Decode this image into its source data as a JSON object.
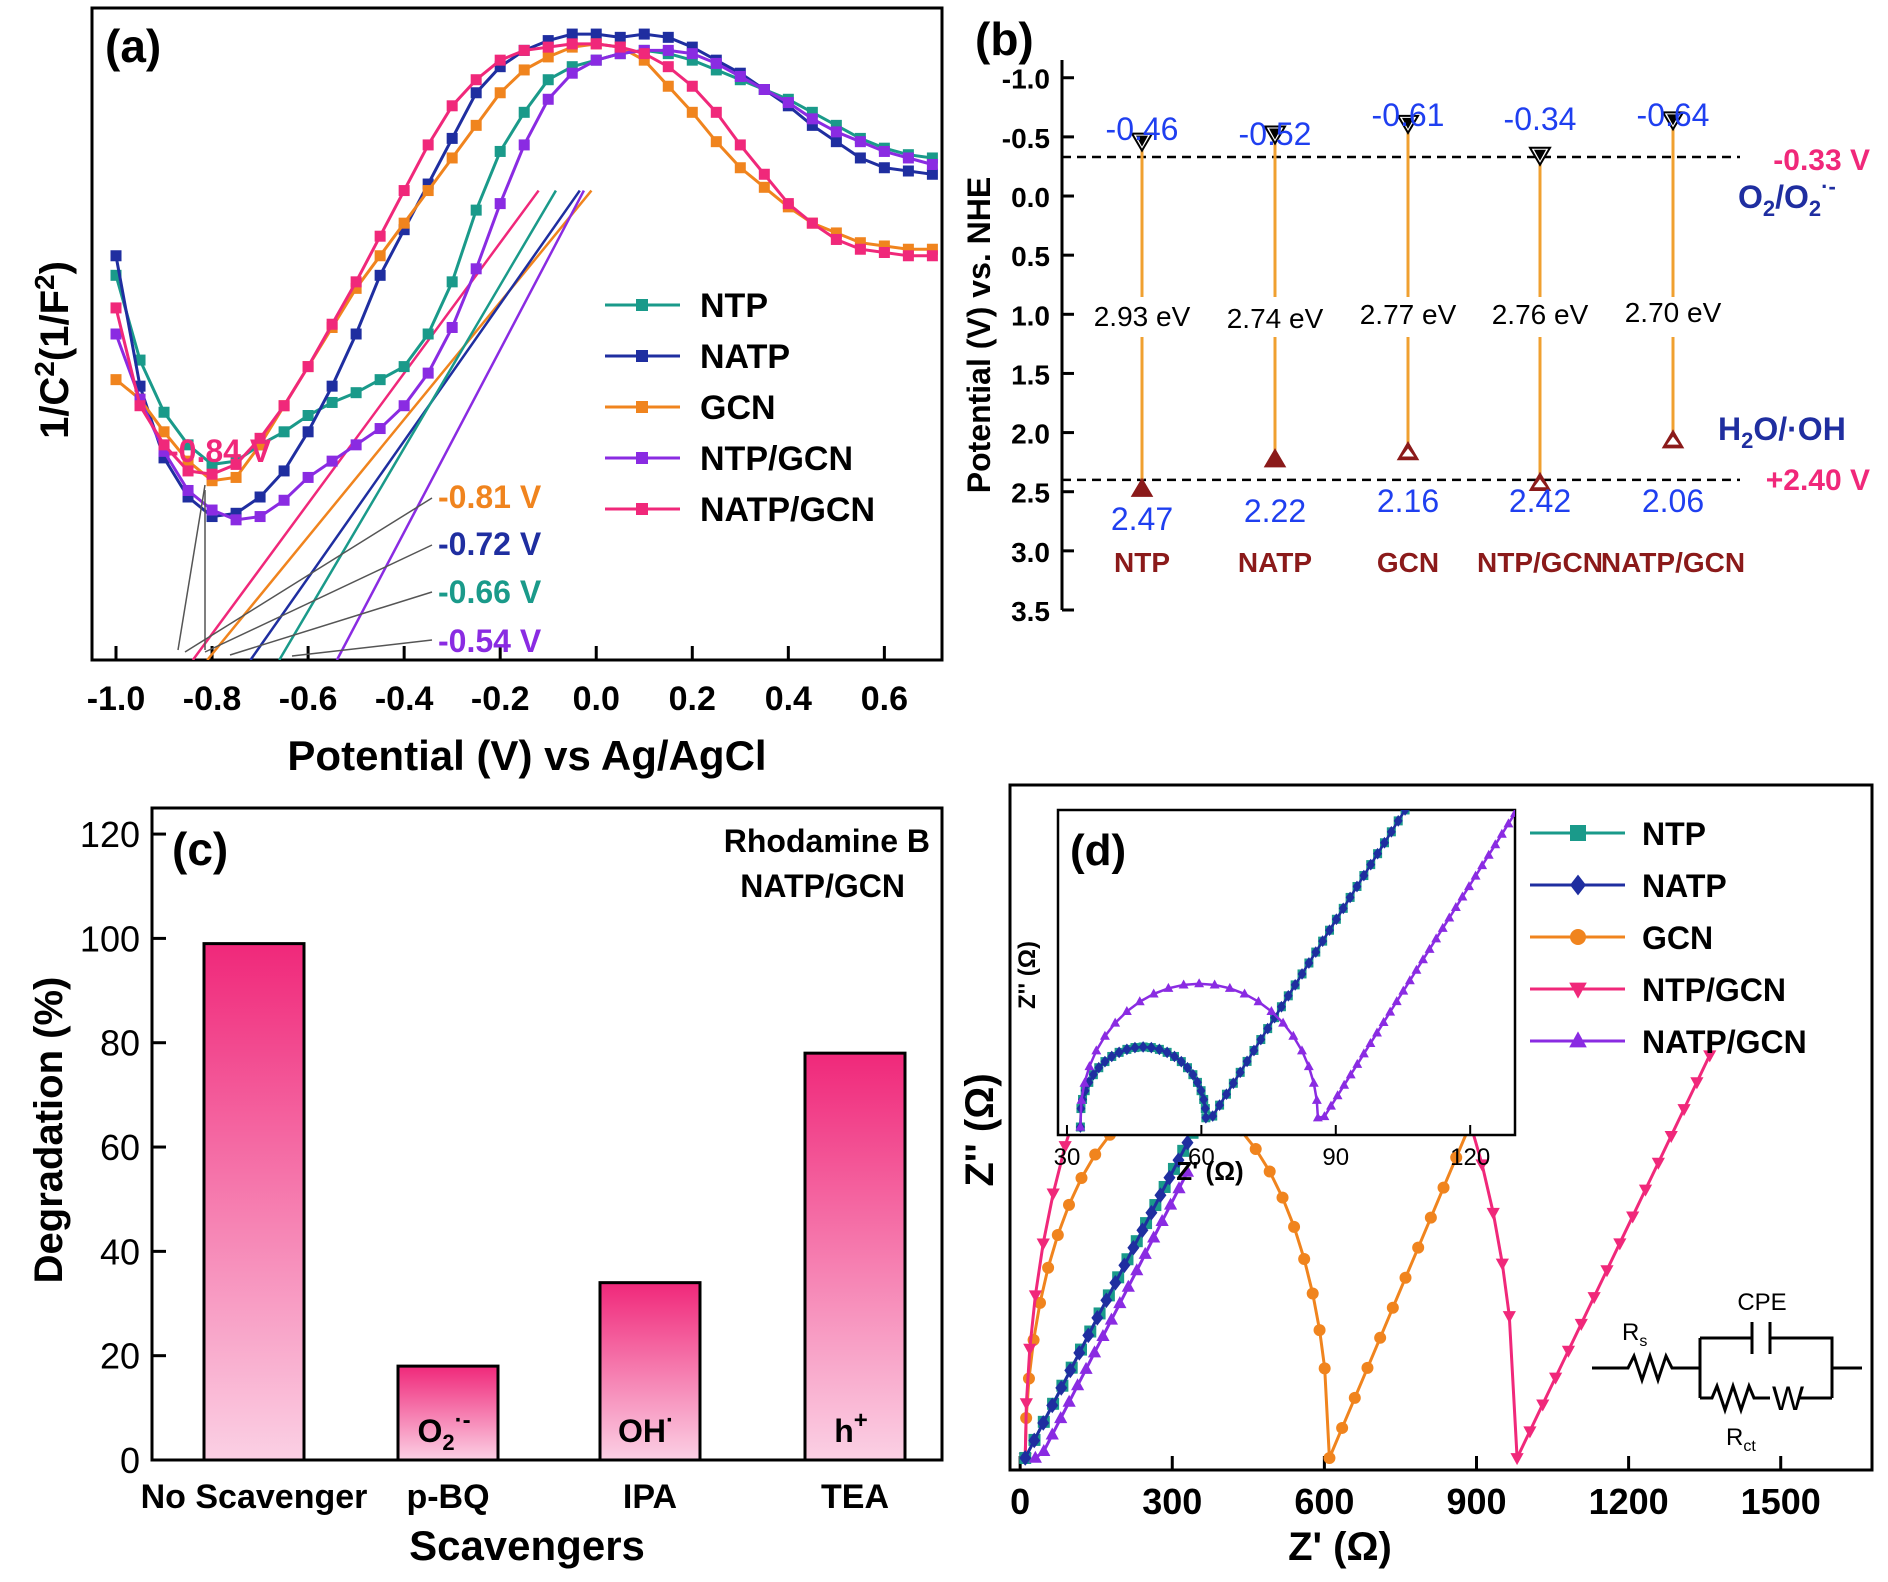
{
  "figure": {
    "panels": [
      {
        "id": "a",
        "label": "(a)",
        "chart_data": {
          "type": "line",
          "title": "",
          "xlabel": "Potential (V) vs Ag/AgCl",
          "ylabel_main": "1/C",
          "ylabel_sup": "2",
          "ylabel_rest": "(1/F",
          "ylabel_sup2": "2",
          "ylabel_end": ")",
          "xlim": [
            -1.05,
            0.72
          ],
          "ylim": [
            0,
            10
          ],
          "xticks": [
            -1.0,
            -0.8,
            -0.6,
            -0.4,
            -0.2,
            0.0,
            0.2,
            0.4,
            0.6
          ],
          "xtick_labels": [
            "-1.0",
            "-0.8",
            "-0.6",
            "-0.4",
            "-0.2",
            "0.0",
            "0.2",
            "0.4",
            "0.6"
          ],
          "legend_position": "right",
          "series": [
            {
              "name": "NTP",
              "color": "#1a9a8a",
              "x": [
                -1.0,
                -0.95,
                -0.9,
                -0.85,
                -0.8,
                -0.75,
                -0.7,
                -0.65,
                -0.6,
                -0.55,
                -0.5,
                -0.45,
                -0.4,
                -0.35,
                -0.3,
                -0.25,
                -0.2,
                -0.15,
                -0.1,
                -0.05,
                0.0,
                0.05,
                0.1,
                0.15,
                0.2,
                0.25,
                0.3,
                0.35,
                0.4,
                0.45,
                0.5,
                0.55,
                0.6,
                0.65,
                0.7
              ],
              "y": [
                5.9,
                4.6,
                3.8,
                3.3,
                3.0,
                3.05,
                3.3,
                3.5,
                3.75,
                3.95,
                4.1,
                4.3,
                4.5,
                5.0,
                5.8,
                6.9,
                7.8,
                8.4,
                8.9,
                9.1,
                9.2,
                9.3,
                9.35,
                9.3,
                9.2,
                9.05,
                8.9,
                8.75,
                8.6,
                8.4,
                8.2,
                8.0,
                7.85,
                7.75,
                7.7
              ]
            },
            {
              "name": "NATP",
              "color": "#1f2ea0",
              "x": [
                -1.0,
                -0.95,
                -0.9,
                -0.85,
                -0.8,
                -0.75,
                -0.7,
                -0.65,
                -0.6,
                -0.55,
                -0.5,
                -0.45,
                -0.4,
                -0.35,
                -0.3,
                -0.25,
                -0.2,
                -0.15,
                -0.1,
                -0.05,
                0.0,
                0.05,
                0.1,
                0.15,
                0.2,
                0.25,
                0.3,
                0.35,
                0.4,
                0.45,
                0.5,
                0.55,
                0.6,
                0.65,
                0.7
              ],
              "y": [
                6.2,
                4.2,
                3.1,
                2.5,
                2.2,
                2.25,
                2.5,
                2.9,
                3.5,
                4.2,
                5.0,
                5.9,
                6.6,
                7.3,
                8.0,
                8.7,
                9.1,
                9.35,
                9.5,
                9.6,
                9.6,
                9.55,
                9.6,
                9.55,
                9.4,
                9.2,
                9.0,
                8.75,
                8.5,
                8.2,
                7.95,
                7.7,
                7.55,
                7.5,
                7.45
              ]
            },
            {
              "name": "GCN",
              "color": "#f0841e",
              "x": [
                -1.0,
                -0.95,
                -0.9,
                -0.85,
                -0.8,
                -0.75,
                -0.7,
                -0.65,
                -0.6,
                -0.55,
                -0.5,
                -0.45,
                -0.4,
                -0.35,
                -0.3,
                -0.25,
                -0.2,
                -0.15,
                -0.1,
                -0.05,
                0.0,
                0.05,
                0.1,
                0.15,
                0.2,
                0.25,
                0.3,
                0.35,
                0.4,
                0.45,
                0.5,
                0.55,
                0.6,
                0.65,
                0.7
              ],
              "y": [
                4.3,
                4.0,
                3.5,
                3.05,
                2.75,
                2.8,
                3.3,
                3.9,
                4.5,
                5.1,
                5.7,
                6.2,
                6.7,
                7.2,
                7.7,
                8.2,
                8.7,
                9.05,
                9.25,
                9.4,
                9.45,
                9.4,
                9.2,
                8.8,
                8.4,
                7.95,
                7.55,
                7.25,
                6.95,
                6.7,
                6.55,
                6.4,
                6.35,
                6.3,
                6.3
              ]
            },
            {
              "name": "NTP/GCN",
              "color": "#8a2be2",
              "x": [
                -1.0,
                -0.95,
                -0.9,
                -0.85,
                -0.8,
                -0.75,
                -0.7,
                -0.65,
                -0.6,
                -0.55,
                -0.5,
                -0.45,
                -0.4,
                -0.35,
                -0.3,
                -0.25,
                -0.2,
                -0.15,
                -0.1,
                -0.05,
                0.0,
                0.05,
                0.1,
                0.15,
                0.2,
                0.25,
                0.3,
                0.35,
                0.4,
                0.45,
                0.5,
                0.55,
                0.6,
                0.65,
                0.7
              ],
              "y": [
                5.0,
                4.0,
                3.2,
                2.6,
                2.3,
                2.15,
                2.2,
                2.45,
                2.8,
                3.05,
                3.3,
                3.55,
                3.9,
                4.4,
                5.1,
                6.0,
                7.0,
                7.9,
                8.6,
                9.0,
                9.2,
                9.3,
                9.35,
                9.35,
                9.3,
                9.15,
                8.95,
                8.75,
                8.55,
                8.3,
                8.1,
                7.95,
                7.8,
                7.7,
                7.6
              ]
            },
            {
              "name": "NATP/GCN",
              "color": "#f0287a",
              "x": [
                -1.0,
                -0.95,
                -0.9,
                -0.85,
                -0.8,
                -0.75,
                -0.7,
                -0.65,
                -0.6,
                -0.55,
                -0.5,
                -0.45,
                -0.4,
                -0.35,
                -0.3,
                -0.25,
                -0.2,
                -0.15,
                -0.1,
                -0.05,
                0.0,
                0.05,
                0.1,
                0.15,
                0.2,
                0.25,
                0.3,
                0.35,
                0.4,
                0.45,
                0.5,
                0.55,
                0.6,
                0.65,
                0.7
              ],
              "y": [
                5.4,
                3.9,
                3.3,
                2.9,
                2.85,
                3.0,
                3.4,
                3.9,
                4.5,
                5.15,
                5.8,
                6.5,
                7.2,
                7.9,
                8.5,
                8.9,
                9.2,
                9.35,
                9.4,
                9.45,
                9.45,
                9.4,
                9.3,
                9.1,
                8.8,
                8.4,
                7.9,
                7.45,
                7.0,
                6.7,
                6.45,
                6.3,
                6.25,
                6.2,
                6.2
              ]
            }
          ],
          "tangents": [
            {
              "series": "NATP/GCN",
              "intercept": -0.84,
              "label": "-0.84 V",
              "color": "#f0287a"
            },
            {
              "series": "GCN",
              "intercept": -0.81,
              "label": "-0.81 V",
              "color": "#f0841e"
            },
            {
              "series": "NATP",
              "intercept": -0.72,
              "label": "-0.72 V",
              "color": "#1f2ea0"
            },
            {
              "series": "NTP",
              "intercept": -0.66,
              "label": "-0.66 V",
              "color": "#1a9a8a"
            },
            {
              "series": "NTP/GCN",
              "intercept": -0.54,
              "label": "-0.54 V",
              "color": "#8a2be2"
            }
          ]
        }
      },
      {
        "id": "b",
        "label": "(b)",
        "chart_data": {
          "type": "band-diagram",
          "ylabel": "Potential (V) vs. NHE",
          "ylim": [
            -1.15,
            3.5
          ],
          "yticks": [
            -1.0,
            -0.5,
            0.0,
            0.5,
            1.0,
            1.5,
            2.0,
            2.5,
            3.0,
            3.5
          ],
          "ytick_labels": [
            "-1.0",
            "-0.5",
            "0.0",
            "0.5",
            "1.0",
            "1.5",
            "2.0",
            "2.5",
            "3.0",
            "3.5"
          ],
          "reference_lines": [
            {
              "value": -0.33,
              "label": "-0.33 V",
              "pair": "O",
              "pair_sub": "2",
              "pair_mid": "/O",
              "pair_sub2": "2",
              "pair_sup": "·-",
              "label_color": "#f0287a",
              "pair_color": "#1f2ea0"
            },
            {
              "value": 2.4,
              "label": "+2.40 V",
              "pair": "H",
              "pair_sub": "2",
              "pair_mid": "O/·OH",
              "pair_sub2": "",
              "pair_sup": "",
              "label_color": "#f0287a",
              "pair_color": "#1f2ea0"
            }
          ],
          "materials": [
            {
              "name": "NTP",
              "cb": -0.46,
              "vb": 2.47,
              "gap": "2.93 eV",
              "cb_label": "-0.46",
              "vb_label": "2.47"
            },
            {
              "name": "NATP",
              "cb": -0.52,
              "vb": 2.22,
              "gap": "2.74 eV",
              "cb_label": "-0.52",
              "vb_label": "2.22"
            },
            {
              "name": "GCN",
              "cb": -0.61,
              "vb": 2.16,
              "gap": "2.77 eV",
              "cb_label": "-0.61",
              "vb_label": "2.16"
            },
            {
              "name": "NTP/GCN",
              "cb": -0.34,
              "vb": 2.42,
              "gap": "2.76 eV",
              "cb_label": "-0.34",
              "vb_label": "2.42"
            },
            {
              "name": "NATP/GCN",
              "cb": -0.64,
              "vb": 2.06,
              "gap": "2.70 eV",
              "cb_label": "-0.64",
              "vb_label": "2.06"
            }
          ],
          "colors": {
            "line": "#f0a030",
            "value": "#1f3ff0",
            "name": "#8b1a1a",
            "marker_vb": "#8b1a1a"
          }
        }
      },
      {
        "id": "c",
        "label": "(c)",
        "chart_data": {
          "type": "bar",
          "title_line1": "Rhodamine B",
          "title_line2": "NATP/GCN",
          "xlabel": "Scavengers",
          "ylabel": "Degradation (%)",
          "ylim": [
            0,
            125
          ],
          "yticks": [
            0,
            20,
            40,
            60,
            80,
            100,
            120
          ],
          "ytick_labels": [
            "0",
            "20",
            "40",
            "60",
            "80",
            "100",
            "120"
          ],
          "categories": [
            "No Scavenger",
            "p-BQ",
            "IPA",
            "TEA"
          ],
          "values": [
            99,
            18,
            34,
            78
          ],
          "bar_species": [
            {
              "main": "",
              "sub": "",
              "sup": ""
            },
            {
              "main": "O",
              "sub": "2",
              "sup": "·-"
            },
            {
              "main": "OH",
              "sub": "",
              "sup": "·"
            },
            {
              "main": "h",
              "sub": "",
              "sup": "+"
            }
          ],
          "colors": {
            "top": "#f0287a",
            "bottom": "#fbd0e4"
          }
        }
      },
      {
        "id": "d",
        "label": "(d)",
        "chart_data": {
          "type": "scatter-line",
          "xlabel": "Z' (Ω)",
          "ylabel": "Z'' (Ω)",
          "xlim": [
            -20,
            1680
          ],
          "ylim": [
            -10,
            560
          ],
          "xticks": [
            0,
            300,
            600,
            900,
            1200,
            1500
          ],
          "xtick_labels": [
            "0",
            "300",
            "600",
            "900",
            "1200",
            "1500"
          ],
          "legend_position": "top-right",
          "series": [
            {
              "name": "NTP",
              "color": "#1a9a8a",
              "marker": "square",
              "arc": {
                "r0": 10,
                "rct": 40,
                "tail_to": 340,
                "tail_slope": 1.0
              }
            },
            {
              "name": "NATP",
              "color": "#1f2ea0",
              "marker": "diamond",
              "arc": {
                "r0": 10,
                "rct": 40,
                "tail_to": 330,
                "tail_slope": 1.0
              }
            },
            {
              "name": "GCN",
              "color": "#f0841e",
              "marker": "circle",
              "arc": {
                "r0": 10,
                "rct": 600,
                "tail_to": 910,
                "tail_slope": 1.0
              }
            },
            {
              "name": "NTP/GCN",
              "color": "#f0287a",
              "marker": "triangle-down",
              "arc": {
                "r0": 10,
                "rct": 970,
                "tail_to": 1360,
                "tail_slope": 0.9
              }
            },
            {
              "name": "NATP/GCN",
              "color": "#8a2be2",
              "marker": "triangle-up",
              "arc": {
                "r0": 30,
                "rct": 60,
                "tail_to": 330,
                "tail_slope": 1.0
              }
            }
          ],
          "inset": {
            "xlabel": "Z' (Ω)",
            "ylabel": "Z'' (Ω)",
            "xlim": [
              28,
              130
            ],
            "xticks": [
              30,
              60,
              90,
              120
            ],
            "xtick_labels": [
              "30",
              "60",
              "90",
              "120"
            ],
            "series": [
              {
                "name": "NTP",
                "color": "#1a9a8a",
                "r0": 33,
                "rct": 28,
                "tail_to": 107
              },
              {
                "name": "NATP",
                "color": "#1f2ea0",
                "r0": 33,
                "rct": 28,
                "tail_to": 107
              },
              {
                "name": "NATP/GCN",
                "color": "#8a2be2",
                "r0": 33,
                "rct": 53,
                "tail_to": 130
              }
            ]
          },
          "circuit": {
            "rs": "R",
            "rs_sub": "s",
            "cpe": "CPE",
            "rct": "R",
            "rct_sub": "ct",
            "w": "W"
          }
        }
      }
    ]
  }
}
